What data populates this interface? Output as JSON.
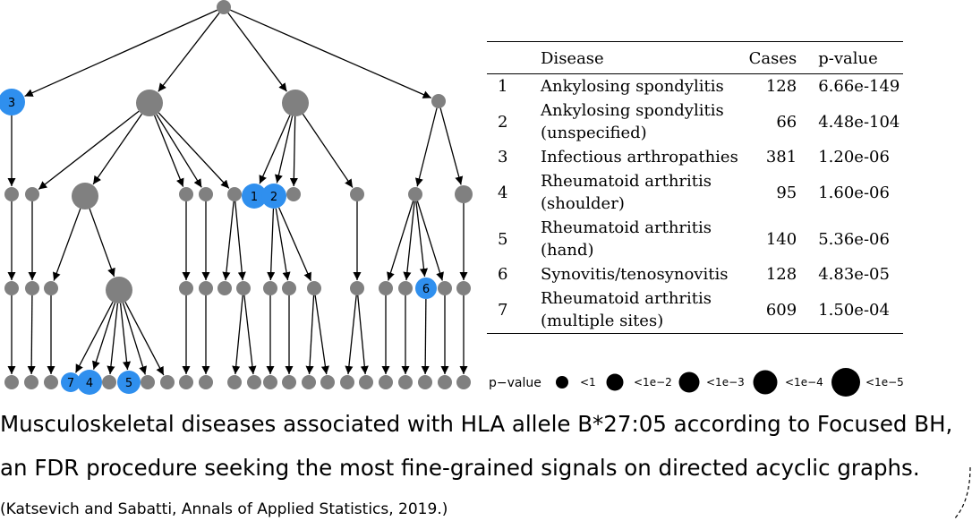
{
  "table": {
    "headers": {
      "num": "",
      "disease": "Disease",
      "cases": "Cases",
      "pvalue": "p-value"
    },
    "rows": [
      {
        "num": "1",
        "disease_line1": "Ankylosing spondylitis",
        "disease_line2": "",
        "cases": "128",
        "pvalue": "6.66e-149"
      },
      {
        "num": "2",
        "disease_line1": "Ankylosing spondylitis",
        "disease_line2": "(unspecified)",
        "cases": "66",
        "pvalue": "4.48e-104"
      },
      {
        "num": "3",
        "disease_line1": "Infectious arthropathies",
        "disease_line2": "",
        "cases": "381",
        "pvalue": "1.20e-06"
      },
      {
        "num": "4",
        "disease_line1": "Rheumatoid arthritis",
        "disease_line2": "(shoulder)",
        "cases": "95",
        "pvalue": "1.60e-06"
      },
      {
        "num": "5",
        "disease_line1": "Rheumatoid arthritis",
        "disease_line2": "(hand)",
        "cases": "140",
        "pvalue": "5.36e-06"
      },
      {
        "num": "6",
        "disease_line1": "Synovitis/tenosynovitis",
        "disease_line2": "",
        "cases": "128",
        "pvalue": "4.83e-05"
      },
      {
        "num": "7",
        "disease_line1": "Rheumatoid arthritis",
        "disease_line2": "(multiple sites)",
        "cases": "609",
        "pvalue": "1.50e-04"
      }
    ]
  },
  "legend": {
    "title": "p−value",
    "items": [
      "<1",
      "<1e−2",
      "<1e−3",
      "<1e−4",
      "<1e−5"
    ]
  },
  "colors": {
    "node": "#808080",
    "highlight": "#2f8fee",
    "edge": "#000000"
  },
  "dag": {
    "highlighted_labels": [
      "1",
      "2",
      "3",
      "4",
      "5",
      "6",
      "7"
    ]
  },
  "caption": {
    "line1": "Musculoskeletal diseases associated with HLA allele B*27:05 according to Focused BH,",
    "line2": "an FDR procedure seeking the most fine-grained signals on directed acyclic graphs.",
    "citation": "(Katsevich and Sabatti, Annals of Applied Statistics, 2019.)"
  }
}
